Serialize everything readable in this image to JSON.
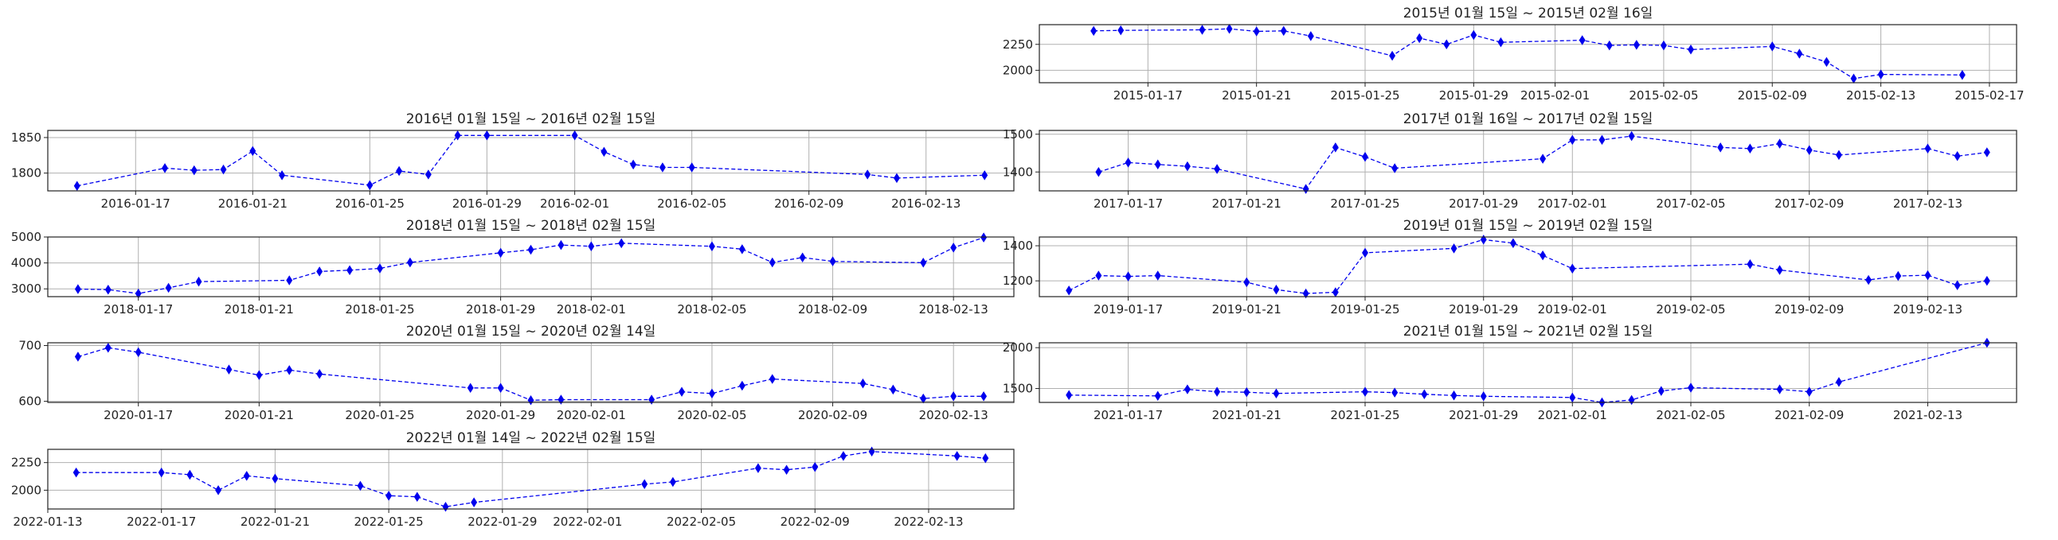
{
  "chart_data": [
    {
      "type": "line",
      "title": "2015년 01월 15일 ~ 2015년 02월 16일",
      "xlim": [
        "2015-01-13",
        "2015-02-18"
      ],
      "ylim": [
        1880,
        2440
      ],
      "yticks": [
        2000,
        2250
      ],
      "xticks": [
        "2015-01-17",
        "2015-01-21",
        "2015-01-25",
        "2015-01-29",
        "2015-02-01",
        "2015-02-05",
        "2015-02-09",
        "2015-02-13",
        "2015-02-17"
      ],
      "grid": true,
      "marker": "diamond",
      "line_style": "dashed",
      "color": "#0000ee",
      "x": [
        "2015-01-15",
        "2015-01-16",
        "2015-01-19",
        "2015-01-20",
        "2015-01-21",
        "2015-01-22",
        "2015-01-23",
        "2015-01-26",
        "2015-01-27",
        "2015-01-28",
        "2015-01-29",
        "2015-01-30",
        "2015-02-02",
        "2015-02-03",
        "2015-02-04",
        "2015-02-05",
        "2015-02-06",
        "2015-02-09",
        "2015-02-10",
        "2015-02-11",
        "2015-02-12",
        "2015-02-13",
        "2015-02-16"
      ],
      "y": [
        2380,
        2385,
        2390,
        2400,
        2375,
        2380,
        2330,
        2140,
        2310,
        2250,
        2340,
        2270,
        2290,
        2240,
        2245,
        2240,
        2200,
        2230,
        2160,
        2080,
        1920,
        1960,
        1955
      ]
    },
    {
      "type": "line",
      "title": "2016년 01월 15일 ~ 2016년 02월 15일",
      "xlim": [
        "2016-01-14",
        "2016-02-16"
      ],
      "ylim": [
        1775,
        1860
      ],
      "yticks": [
        1800,
        1850
      ],
      "xticks": [
        "2016-01-17",
        "2016-01-21",
        "2016-01-25",
        "2016-01-29",
        "2016-02-01",
        "2016-02-05",
        "2016-02-09",
        "2016-02-13"
      ],
      "grid": true,
      "marker": "diamond",
      "line_style": "dashed",
      "color": "#0000ee",
      "x": [
        "2016-01-15",
        "2016-01-18",
        "2016-01-19",
        "2016-01-20",
        "2016-01-21",
        "2016-01-22",
        "2016-01-25",
        "2016-01-26",
        "2016-01-27",
        "2016-01-28",
        "2016-01-29",
        "2016-02-01",
        "2016-02-02",
        "2016-02-03",
        "2016-02-04",
        "2016-02-05",
        "2016-02-11",
        "2016-02-12",
        "2016-02-15"
      ],
      "y": [
        1782,
        1807,
        1804,
        1805,
        1831,
        1797,
        1783,
        1803,
        1798,
        1853,
        1853,
        1853,
        1830,
        1812,
        1808,
        1808,
        1798,
        1793,
        1797
      ]
    },
    {
      "type": "line",
      "title": "2017년 01월 16일 ~ 2017년 02월 15일",
      "xlim": [
        "2017-01-14",
        "2017-02-16"
      ],
      "ylim": [
        1350,
        1510
      ],
      "yticks": [
        1400,
        1500
      ],
      "xticks": [
        "2017-01-17",
        "2017-01-21",
        "2017-01-25",
        "2017-01-29",
        "2017-02-01",
        "2017-02-05",
        "2017-02-09",
        "2017-02-13"
      ],
      "grid": true,
      "marker": "diamond",
      "line_style": "dashed",
      "color": "#0000ee",
      "x": [
        "2017-01-16",
        "2017-01-17",
        "2017-01-18",
        "2017-01-19",
        "2017-01-20",
        "2017-01-23",
        "2017-01-24",
        "2017-01-25",
        "2017-01-26",
        "2017-01-31",
        "2017-02-01",
        "2017-02-02",
        "2017-02-03",
        "2017-02-06",
        "2017-02-07",
        "2017-02-08",
        "2017-02-09",
        "2017-02-10",
        "2017-02-13",
        "2017-02-14",
        "2017-02-15"
      ],
      "y": [
        1400,
        1425,
        1420,
        1415,
        1408,
        1355,
        1465,
        1440,
        1410,
        1435,
        1485,
        1485,
        1495,
        1465,
        1462,
        1475,
        1458,
        1445,
        1462,
        1442,
        1452
      ]
    },
    {
      "type": "line",
      "title": "2018년 01월 15일 ~ 2018년 02월 15일",
      "xlim": [
        "2018-01-14",
        "2018-02-15"
      ],
      "ylim": [
        2700,
        5000
      ],
      "yticks": [
        3000,
        4000,
        5000
      ],
      "xticks": [
        "2018-01-17",
        "2018-01-21",
        "2018-01-25",
        "2018-01-29",
        "2018-02-01",
        "2018-02-05",
        "2018-02-09",
        "2018-02-13"
      ],
      "grid": true,
      "marker": "diamond",
      "line_style": "dashed",
      "color": "#0000ee",
      "x": [
        "2018-01-15",
        "2018-01-16",
        "2018-01-17",
        "2018-01-18",
        "2018-01-19",
        "2018-01-22",
        "2018-01-23",
        "2018-01-24",
        "2018-01-25",
        "2018-01-26",
        "2018-01-29",
        "2018-01-30",
        "2018-01-31",
        "2018-02-01",
        "2018-02-02",
        "2018-02-05",
        "2018-02-06",
        "2018-02-07",
        "2018-02-08",
        "2018-02-09",
        "2018-02-12",
        "2018-02-13",
        "2018-02-14"
      ],
      "y": [
        2990,
        2970,
        2820,
        3040,
        3280,
        3330,
        3670,
        3720,
        3790,
        4020,
        4390,
        4510,
        4690,
        4640,
        4760,
        4640,
        4530,
        4020,
        4210,
        4060,
        4010,
        4590,
        4980
      ]
    },
    {
      "type": "line",
      "title": "2019년 01월 15일 ~ 2019년 02월 15일",
      "xlim": [
        "2019-01-14",
        "2019-02-16"
      ],
      "ylim": [
        1110,
        1450
      ],
      "yticks": [
        1200,
        1400
      ],
      "xticks": [
        "2019-01-17",
        "2019-01-21",
        "2019-01-25",
        "2019-01-29",
        "2019-02-01",
        "2019-02-05",
        "2019-02-09",
        "2019-02-13"
      ],
      "grid": true,
      "marker": "diamond",
      "line_style": "dashed",
      "color": "#0000ee",
      "x": [
        "2019-01-15",
        "2019-01-16",
        "2019-01-17",
        "2019-01-18",
        "2019-01-21",
        "2019-01-22",
        "2019-01-23",
        "2019-01-24",
        "2019-01-25",
        "2019-01-28",
        "2019-01-29",
        "2019-01-30",
        "2019-01-31",
        "2019-02-01",
        "2019-02-07",
        "2019-02-08",
        "2019-02-11",
        "2019-02-12",
        "2019-02-13",
        "2019-02-14",
        "2019-02-15"
      ],
      "y": [
        1145,
        1230,
        1225,
        1230,
        1192,
        1150,
        1128,
        1135,
        1360,
        1385,
        1435,
        1415,
        1345,
        1270,
        1295,
        1262,
        1205,
        1228,
        1232,
        1175,
        1200
      ]
    },
    {
      "type": "line",
      "title": "2020년 01월 15일 ~ 2020년 02월 14일",
      "xlim": [
        "2020-01-14",
        "2020-02-15"
      ],
      "ylim": [
        598,
        705
      ],
      "yticks": [
        600,
        700
      ],
      "xticks": [
        "2020-01-17",
        "2020-01-21",
        "2020-01-25",
        "2020-01-29",
        "2020-02-01",
        "2020-02-05",
        "2020-02-09",
        "2020-02-13"
      ],
      "grid": true,
      "marker": "diamond",
      "line_style": "dashed",
      "color": "#0000ee",
      "x": [
        "2020-01-15",
        "2020-01-16",
        "2020-01-17",
        "2020-01-20",
        "2020-01-21",
        "2020-01-22",
        "2020-01-23",
        "2020-01-28",
        "2020-01-29",
        "2020-01-30",
        "2020-01-31",
        "2020-02-03",
        "2020-02-04",
        "2020-02-05",
        "2020-02-06",
        "2020-02-07",
        "2020-02-10",
        "2020-02-11",
        "2020-02-12",
        "2020-02-13",
        "2020-02-14"
      ],
      "y": [
        680,
        696,
        688,
        657,
        647,
        656,
        649,
        624,
        624,
        602,
        603,
        603,
        617,
        614,
        628,
        640,
        632,
        621,
        605,
        609,
        609
      ]
    },
    {
      "type": "line",
      "title": "2021년 01월 15일 ~ 2021년 02월 15일",
      "xlim": [
        "2021-01-14",
        "2021-02-16"
      ],
      "ylim": [
        1330,
        2060
      ],
      "yticks": [
        1500,
        2000
      ],
      "xticks": [
        "2021-01-17",
        "2021-01-21",
        "2021-01-25",
        "2021-01-29",
        "2021-02-01",
        "2021-02-05",
        "2021-02-09",
        "2021-02-13"
      ],
      "grid": true,
      "marker": "diamond",
      "line_style": "dashed",
      "color": "#0000ee",
      "x": [
        "2021-01-15",
        "2021-01-18",
        "2021-01-19",
        "2021-01-20",
        "2021-01-21",
        "2021-01-22",
        "2021-01-25",
        "2021-01-26",
        "2021-01-27",
        "2021-01-28",
        "2021-01-29",
        "2021-02-01",
        "2021-02-02",
        "2021-02-03",
        "2021-02-04",
        "2021-02-05",
        "2021-02-08",
        "2021-02-09",
        "2021-02-10",
        "2021-02-15"
      ],
      "y": [
        1420,
        1410,
        1490,
        1460,
        1455,
        1440,
        1460,
        1450,
        1430,
        1415,
        1405,
        1390,
        1330,
        1360,
        1470,
        1510,
        1490,
        1460,
        1580,
        2060
      ]
    },
    {
      "type": "line",
      "title": "2022년 01월 14일 ~ 2022년 02월 15일",
      "xlim": [
        "2022-01-13",
        "2022-02-16"
      ],
      "ylim": [
        1830,
        2370
      ],
      "yticks": [
        2000,
        2250
      ],
      "xticks": [
        "2022-01-13",
        "2022-01-17",
        "2022-01-21",
        "2022-01-25",
        "2022-01-29",
        "2022-02-01",
        "2022-02-05",
        "2022-02-09",
        "2022-02-13"
      ],
      "grid": true,
      "marker": "diamond",
      "line_style": "dashed",
      "color": "#0000ee",
      "x": [
        "2022-01-14",
        "2022-01-17",
        "2022-01-18",
        "2022-01-19",
        "2022-01-20",
        "2022-01-21",
        "2022-01-24",
        "2022-01-25",
        "2022-01-26",
        "2022-01-27",
        "2022-01-28",
        "2022-02-03",
        "2022-02-04",
        "2022-02-07",
        "2022-02-08",
        "2022-02-09",
        "2022-02-10",
        "2022-02-11",
        "2022-02-14",
        "2022-02-15"
      ],
      "y": [
        2160,
        2160,
        2140,
        2000,
        2130,
        2105,
        2040,
        1950,
        1940,
        1850,
        1890,
        2055,
        2075,
        2200,
        2185,
        2210,
        2310,
        2350,
        2310,
        2290
      ]
    }
  ]
}
